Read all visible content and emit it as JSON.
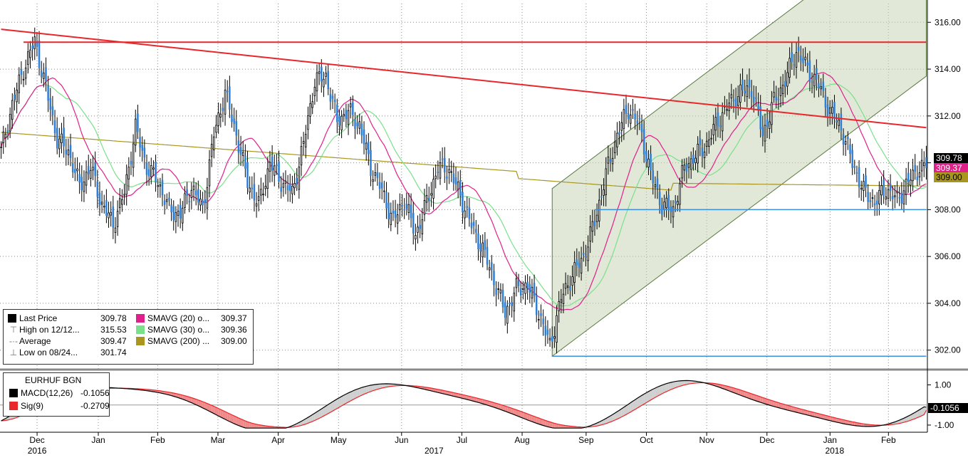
{
  "chart_data": [
    {
      "type": "candlestick",
      "instrument": "EURHUF BGN",
      "y_ticks": [
        "302.00",
        "304.00",
        "306.00",
        "308.00",
        "310.00",
        "312.00",
        "314.00",
        "316.00"
      ],
      "ylim": [
        301.2,
        316.8
      ],
      "months": [
        {
          "label": "Dec",
          "pos": 0.04
        },
        {
          "label": "Jan",
          "pos": 0.106
        },
        {
          "label": "Feb",
          "pos": 0.17
        },
        {
          "label": "Mar",
          "pos": 0.235
        },
        {
          "label": "Apr",
          "pos": 0.3
        },
        {
          "label": "May",
          "pos": 0.365
        },
        {
          "label": "Jun",
          "pos": 0.433
        },
        {
          "label": "Jul",
          "pos": 0.498
        },
        {
          "label": "Aug",
          "pos": 0.563
        },
        {
          "label": "Sep",
          "pos": 0.632
        },
        {
          "label": "Oct",
          "pos": 0.697
        },
        {
          "label": "Nov",
          "pos": 0.762
        },
        {
          "label": "Dec",
          "pos": 0.827
        },
        {
          "label": "Jan",
          "pos": 0.895
        },
        {
          "label": "Feb",
          "pos": 0.958
        }
      ],
      "years": [
        {
          "label": "2016",
          "pos": 0.04
        },
        {
          "label": "2017",
          "pos": 0.468
        },
        {
          "label": "2018",
          "pos": 0.9
        }
      ],
      "anchors": [
        [
          0,
          310.5
        ],
        [
          5,
          312.5
        ],
        [
          10,
          314.0
        ],
        [
          15,
          315.2
        ],
        [
          20,
          313.2
        ],
        [
          25,
          311.0
        ],
        [
          30,
          310.5
        ],
        [
          35,
          309.0
        ],
        [
          40,
          309.8
        ],
        [
          45,
          308.2
        ],
        [
          50,
          307.4
        ],
        [
          55,
          308.7
        ],
        [
          60,
          311.5
        ],
        [
          65,
          309.8
        ],
        [
          70,
          309.2
        ],
        [
          75,
          308.0
        ],
        [
          80,
          307.8
        ],
        [
          85,
          309.0
        ],
        [
          90,
          308.0
        ],
        [
          95,
          311.2
        ],
        [
          100,
          313.0
        ],
        [
          105,
          311.2
        ],
        [
          110,
          309.2
        ],
        [
          115,
          308.2
        ],
        [
          120,
          310.0
        ],
        [
          125,
          309.2
        ],
        [
          130,
          308.7
        ],
        [
          135,
          310.8
        ],
        [
          140,
          313.5
        ],
        [
          145,
          313.7
        ],
        [
          150,
          311.8
        ],
        [
          155,
          312.2
        ],
        [
          160,
          311.6
        ],
        [
          165,
          309.8
        ],
        [
          170,
          308.8
        ],
        [
          175,
          307.5
        ],
        [
          180,
          308.4
        ],
        [
          185,
          306.9
        ],
        [
          190,
          308.3
        ],
        [
          195,
          309.8
        ],
        [
          200,
          309.7
        ],
        [
          205,
          308.6
        ],
        [
          210,
          307.3
        ],
        [
          215,
          306.3
        ],
        [
          220,
          305.0
        ],
        [
          225,
          303.6
        ],
        [
          230,
          304.6
        ],
        [
          235,
          304.8
        ],
        [
          240,
          303.6
        ],
        [
          245,
          302.2
        ],
        [
          250,
          304.2
        ],
        [
          255,
          305.2
        ],
        [
          260,
          306.0
        ],
        [
          265,
          307.5
        ],
        [
          270,
          309.5
        ],
        [
          275,
          311.2
        ],
        [
          280,
          312.3
        ],
        [
          285,
          311.6
        ],
        [
          290,
          309.5
        ],
        [
          295,
          308.2
        ],
        [
          300,
          308.0
        ],
        [
          305,
          309.8
        ],
        [
          310,
          310.3
        ],
        [
          315,
          310.8
        ],
        [
          320,
          311.8
        ],
        [
          325,
          312.5
        ],
        [
          330,
          313.0
        ],
        [
          335,
          313.2
        ],
        [
          340,
          311.2
        ],
        [
          345,
          312.6
        ],
        [
          350,
          313.5
        ],
        [
          355,
          314.8
        ],
        [
          360,
          314.0
        ],
        [
          365,
          313.3
        ],
        [
          370,
          312.2
        ],
        [
          375,
          311.5
        ],
        [
          380,
          310.0
        ],
        [
          385,
          308.8
        ],
        [
          390,
          308.3
        ],
        [
          395,
          308.9
        ],
        [
          400,
          308.4
        ],
        [
          405,
          309.2
        ],
        [
          410,
          309.8
        ],
        [
          413,
          309.78
        ]
      ],
      "lines": {
        "trend_resistance": {
          "x": [
            0,
            413
          ],
          "y": [
            315.7,
            311.5
          ],
          "color": "#e8262b"
        },
        "horizontal_resistance": {
          "x": [
            10,
            413
          ],
          "y": [
            315.15,
            315.15
          ],
          "color": "#e8262b"
        },
        "support_308": {
          "x": [
            265,
            413
          ],
          "y": [
            308.0,
            308.0
          ],
          "color": "#3b8fe0"
        },
        "support_low": {
          "x": [
            246,
            413
          ],
          "y": [
            301.74,
            301.74
          ],
          "color": "#3b8fe0"
        },
        "channel_lower": {
          "x": [
            246,
            413
          ],
          "y": [
            301.74,
            313.7
          ]
        },
        "channel_upper": {
          "x": [
            246,
            413
          ],
          "y": [
            308.9,
            320.9
          ]
        }
      },
      "legend": {
        "rows": [
          {
            "label": "Last Price",
            "value": "309.78",
            "color": "#000000"
          },
          {
            "label": "High on 12/12...",
            "value": "315.53"
          },
          {
            "label": "Average",
            "value": "309.47"
          },
          {
            "label": "Low on 08/24...",
            "value": "301.74"
          }
        ],
        "ma": [
          {
            "label": "SMAVG (20) o...",
            "value": "309.37",
            "color": "#e0208a"
          },
          {
            "label": "SMAVG (30) o...",
            "value": "309.36",
            "color": "#7ae08a"
          },
          {
            "label": "SMAVG (200) ...",
            "value": "309.00",
            "color": "#a8961e"
          }
        ]
      },
      "price_tags": [
        {
          "value": "309.78",
          "bg": "#000000",
          "fg": "#ffffff",
          "y": 309.78
        },
        {
          "value": "309.37",
          "bg": "#e0208a",
          "fg": "#ffffff",
          "y": 309.37
        },
        {
          "value": "309.00",
          "bg": "#a8961e",
          "fg": "#000000",
          "y": 309.0
        }
      ]
    },
    {
      "type": "line",
      "title": "EURHUF BGN",
      "series": [
        {
          "name": "MACD(12,26)",
          "value": "-0.1056",
          "color": "#000000"
        },
        {
          "name": "Sig(9)",
          "value": "-0.2709",
          "color": "#e8262b"
        }
      ],
      "y_ticks": [
        "1.00",
        "-1.00"
      ],
      "ylim": [
        -1.25,
        1.55
      ],
      "tag": {
        "value": "-0.1056",
        "bg": "#000000",
        "fg": "#ffffff"
      }
    }
  ]
}
